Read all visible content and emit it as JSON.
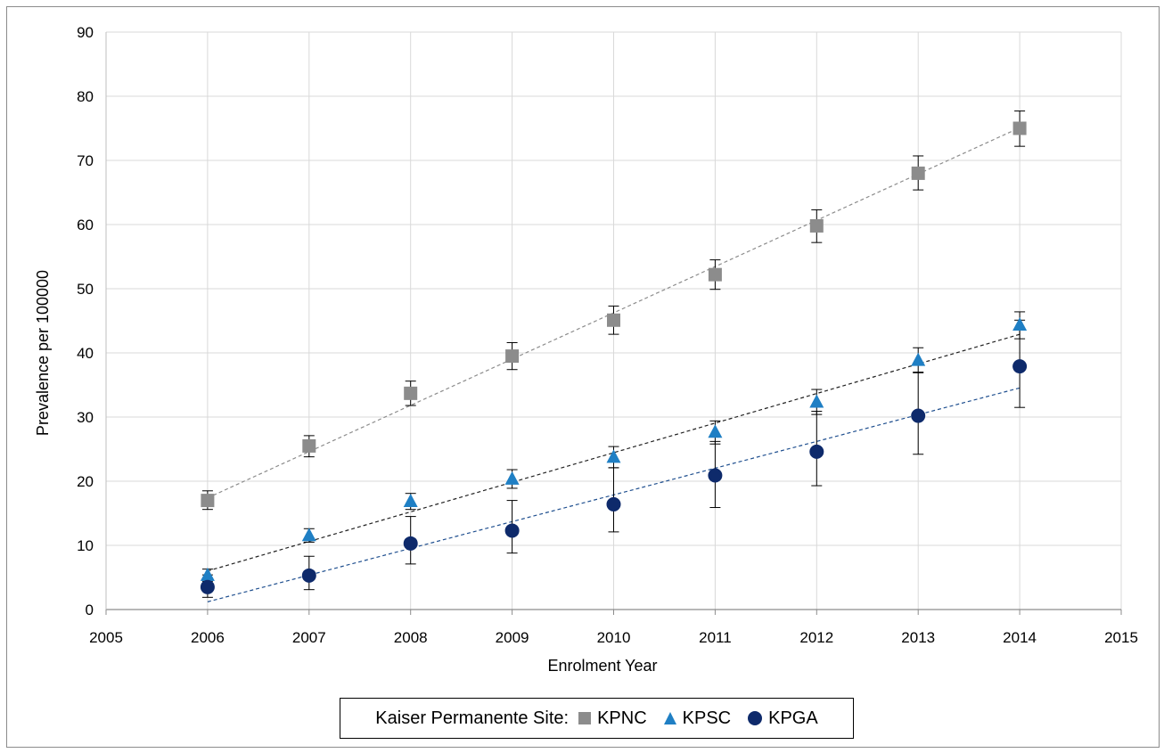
{
  "chart_data": {
    "type": "scatter",
    "xlabel": "Enrolment Year",
    "ylabel": "Prevalence per 100000",
    "xlim": [
      2005,
      2015
    ],
    "ylim": [
      0,
      90
    ],
    "xticks": [
      2005,
      2006,
      2007,
      2008,
      2009,
      2010,
      2011,
      2012,
      2013,
      2014,
      2015
    ],
    "yticks": [
      0,
      10,
      20,
      30,
      40,
      50,
      60,
      70,
      80,
      90
    ],
    "grid": true,
    "legend": {
      "title": "Kaiser Permanente Site:",
      "placement": "bottom-center"
    },
    "series": [
      {
        "name": "KPNC",
        "marker": "square",
        "color": "#8c8c8c",
        "trend_color": "#8c8c8c",
        "x": [
          2006,
          2007,
          2008,
          2009,
          2010,
          2011,
          2012,
          2013,
          2014
        ],
        "y": [
          17.0,
          25.5,
          33.7,
          39.5,
          45.1,
          52.2,
          59.8,
          68.0,
          75.0
        ],
        "err_low": [
          15.6,
          23.8,
          31.8,
          37.4,
          42.9,
          49.9,
          57.2,
          65.4,
          72.2
        ],
        "err_high": [
          18.5,
          27.1,
          35.6,
          41.6,
          47.3,
          54.5,
          62.3,
          70.7,
          77.7
        ],
        "trend": [
          17.4,
          82.3
        ]
      },
      {
        "name": "KPSC",
        "marker": "triangle",
        "color": "#1f7fc4",
        "trend_color": "#222222",
        "x": [
          2006,
          2007,
          2008,
          2009,
          2010,
          2011,
          2012,
          2013,
          2014
        ],
        "y": [
          5.3,
          11.5,
          16.8,
          20.3,
          23.7,
          27.6,
          32.3,
          38.8,
          44.3
        ],
        "err_low": [
          4.4,
          10.5,
          15.6,
          18.9,
          22.1,
          25.8,
          30.4,
          36.9,
          42.2
        ],
        "err_high": [
          6.3,
          12.6,
          18.1,
          21.8,
          25.4,
          29.4,
          34.3,
          40.8,
          46.4
        ],
        "trend": [
          6.0,
          47.5
        ]
      },
      {
        "name": "KPGA",
        "marker": "circle",
        "color": "#0e2a6b",
        "trend_color": "#1f4f8f",
        "x": [
          2006,
          2007,
          2008,
          2009,
          2010,
          2011,
          2012,
          2013,
          2014
        ],
        "y": [
          3.5,
          5.3,
          10.3,
          12.3,
          16.4,
          20.9,
          24.6,
          30.2,
          37.9
        ],
        "err_low": [
          1.9,
          3.1,
          7.1,
          8.8,
          12.1,
          15.9,
          19.3,
          24.2,
          31.5
        ],
        "err_high": [
          5.4,
          8.3,
          14.5,
          17.0,
          22.1,
          26.2,
          30.9,
          37.0,
          45.1
        ],
        "trend": [
          1.2,
          38.7
        ]
      }
    ]
  }
}
